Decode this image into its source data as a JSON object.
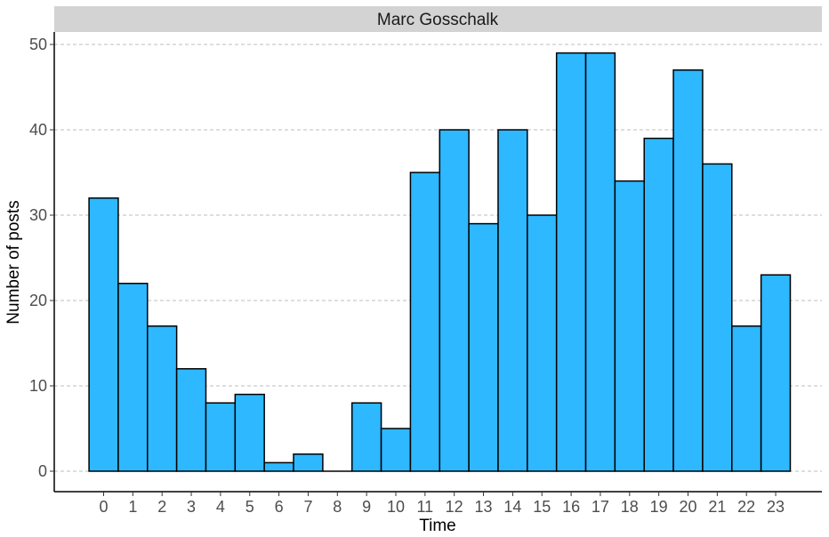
{
  "chart_data": {
    "type": "bar",
    "panel_title": "Marc Gosschalk",
    "xlabel": "Time",
    "ylabel": "Number of posts",
    "categories": [
      "0",
      "1",
      "2",
      "3",
      "4",
      "5",
      "6",
      "7",
      "8",
      "9",
      "10",
      "11",
      "12",
      "13",
      "14",
      "15",
      "16",
      "17",
      "18",
      "19",
      "20",
      "21",
      "22",
      "23"
    ],
    "values": [
      32,
      22,
      17,
      12,
      8,
      9,
      1,
      2,
      0,
      8,
      5,
      35,
      40,
      29,
      40,
      30,
      49,
      49,
      34,
      39,
      47,
      36,
      17,
      23
    ],
    "y_ticks": [
      "0",
      "10",
      "20",
      "30",
      "40",
      "50"
    ],
    "ylim": [
      0,
      51.5
    ],
    "grid": "horizontal dashed major gridlines",
    "colors": {
      "bar_fill": "#2eb8ff",
      "bar_outline": "#000000",
      "strip_background": "#d3d3d3",
      "gridline": "#bdbdbd"
    }
  }
}
